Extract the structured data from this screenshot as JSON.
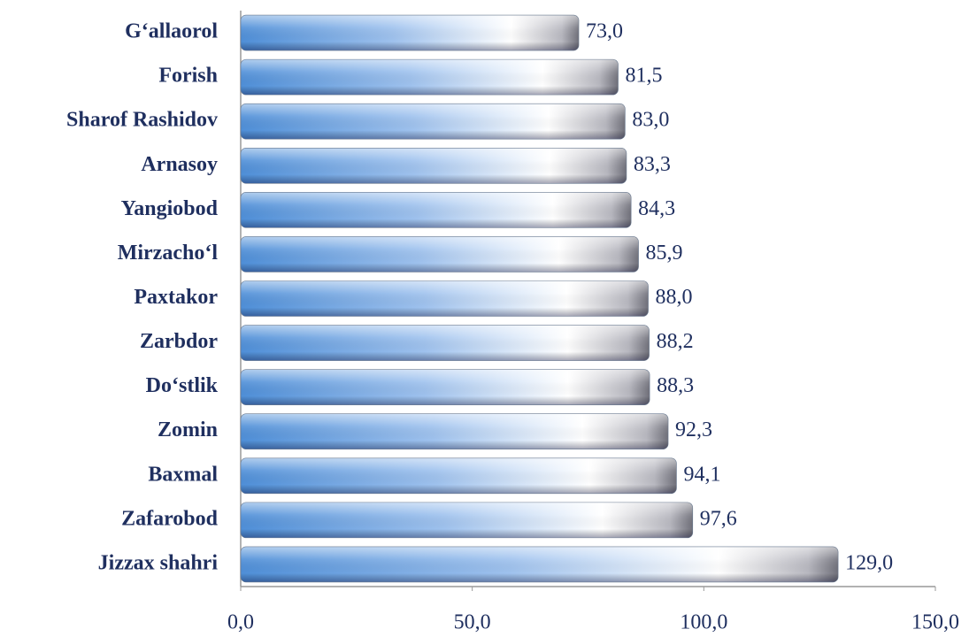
{
  "chart_data": {
    "type": "barh",
    "categories": [
      "G‘allaorol",
      "Forish",
      "Sharof Rashidov",
      "Arnasoy",
      "Yangiobod",
      "Mirzacho‘l",
      "Paxtakor",
      "Zarbdor",
      "Do‘stlik",
      "Zomin",
      "Baxmal",
      "Zafarobod",
      "Jizzax shahri"
    ],
    "values": [
      73.0,
      81.5,
      83.0,
      83.3,
      84.3,
      85.9,
      88.0,
      88.2,
      88.3,
      92.3,
      94.1,
      97.6,
      129.0
    ],
    "value_labels": [
      "73,0",
      "81,5",
      "83,0",
      "83,3",
      "84,3",
      "85,9",
      "88,0",
      "88,2",
      "88,3",
      "92,3",
      "94,1",
      "97,6",
      "129,0"
    ],
    "color": "#4f8fd8",
    "xlim": [
      0,
      150
    ],
    "xticks": [
      {
        "value": 0,
        "label": "0,0"
      },
      {
        "value": 50,
        "label": "50,0"
      },
      {
        "value": 100,
        "label": "100,0"
      },
      {
        "value": 150,
        "label": "150,0"
      }
    ],
    "grid": false
  }
}
